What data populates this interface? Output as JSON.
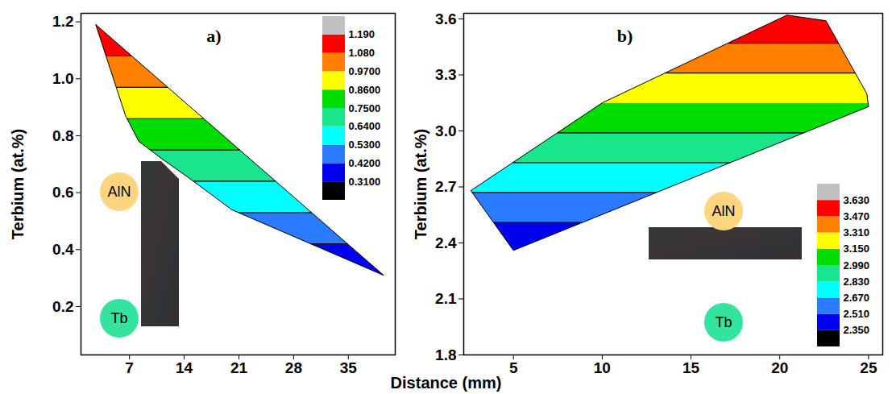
{
  "x_label": "Distance (mm)",
  "chart_data": [
    {
      "type": "contour",
      "title": "a)",
      "y_label": "Terbium (at.%)",
      "grid": false,
      "xlim": [
        0.8,
        41
      ],
      "xticks": [
        7,
        14,
        21,
        28,
        35
      ],
      "ylim": [
        0.03,
        1.23
      ],
      "yticks": [
        0.2,
        0.4,
        0.6,
        0.8,
        {
          "value": 1,
          "label": "1.0"
        },
        1.2
      ],
      "boundary": {
        "x": [
          2.7,
          6.5,
          8.2,
          11.1,
          14.7,
          20.1,
          39.5
        ],
        "y": [
          1.19,
          0.87,
          0.78,
          0.72,
          0.65,
          0.54,
          0.31
        ]
      },
      "colorbar": {
        "ticks": [
          {
            "value": 0.31,
            "label": "0.3100"
          },
          {
            "value": 0.42,
            "label": "0.4200"
          },
          {
            "value": 0.53,
            "label": "0.5300"
          },
          {
            "value": 0.64,
            "label": "0.6400"
          },
          {
            "value": 0.75,
            "label": "0.7500"
          },
          {
            "value": 0.86,
            "label": "0.8600"
          },
          {
            "value": 0.97,
            "label": "0.9700"
          },
          {
            "value": 1.08,
            "label": "1.080"
          },
          {
            "value": 1.19,
            "label": "1.190"
          }
        ],
        "colors": [
          "#000000",
          "#0000ee",
          "#2a7bff",
          "#00ffff",
          "#19e68c",
          "#00dd00",
          "#ffff00",
          "#ff8000",
          "#ff0000",
          "#c0c0c0"
        ]
      },
      "annotations": [
        "AlN",
        "Tb"
      ]
    },
    {
      "type": "contour",
      "title": "b)",
      "y_label": "Terbium (at.%)",
      "grid": false,
      "xlim": [
        2.2,
        25.8
      ],
      "xticks": [
        5,
        10,
        15,
        20,
        25
      ],
      "ylim": [
        1.8,
        3.63
      ],
      "yticks": [
        1.8,
        2.1,
        2.4,
        2.7,
        {
          "value": 3,
          "label": "3.0"
        },
        3.3,
        3.6
      ],
      "boundary": {
        "x": [
          2.6,
          5,
          25,
          24.9,
          22.6,
          20.4,
          10
        ],
        "y": [
          2.68,
          2.36,
          3.13,
          3.2,
          3.59,
          3.62,
          3.15
        ]
      },
      "colorbar": {
        "ticks": [
          {
            "value": 2.35,
            "label": "2.350"
          },
          {
            "value": 2.51,
            "label": "2.510"
          },
          {
            "value": 2.67,
            "label": "2.670"
          },
          {
            "value": 2.83,
            "label": "2.830"
          },
          {
            "value": 2.99,
            "label": "2.990"
          },
          {
            "value": 3.15,
            "label": "3.150"
          },
          {
            "value": 3.31,
            "label": "3.310"
          },
          {
            "value": 3.47,
            "label": "3.470"
          },
          {
            "value": 3.63,
            "label": "3.630"
          }
        ],
        "colors": [
          "#000000",
          "#0000ee",
          "#2a7bff",
          "#00ffff",
          "#19e68c",
          "#00dd00",
          "#ffff00",
          "#ff8000",
          "#ff0000",
          "#c0c0c0"
        ]
      },
      "annotations": [
        "AlN",
        "Tb"
      ]
    }
  ]
}
